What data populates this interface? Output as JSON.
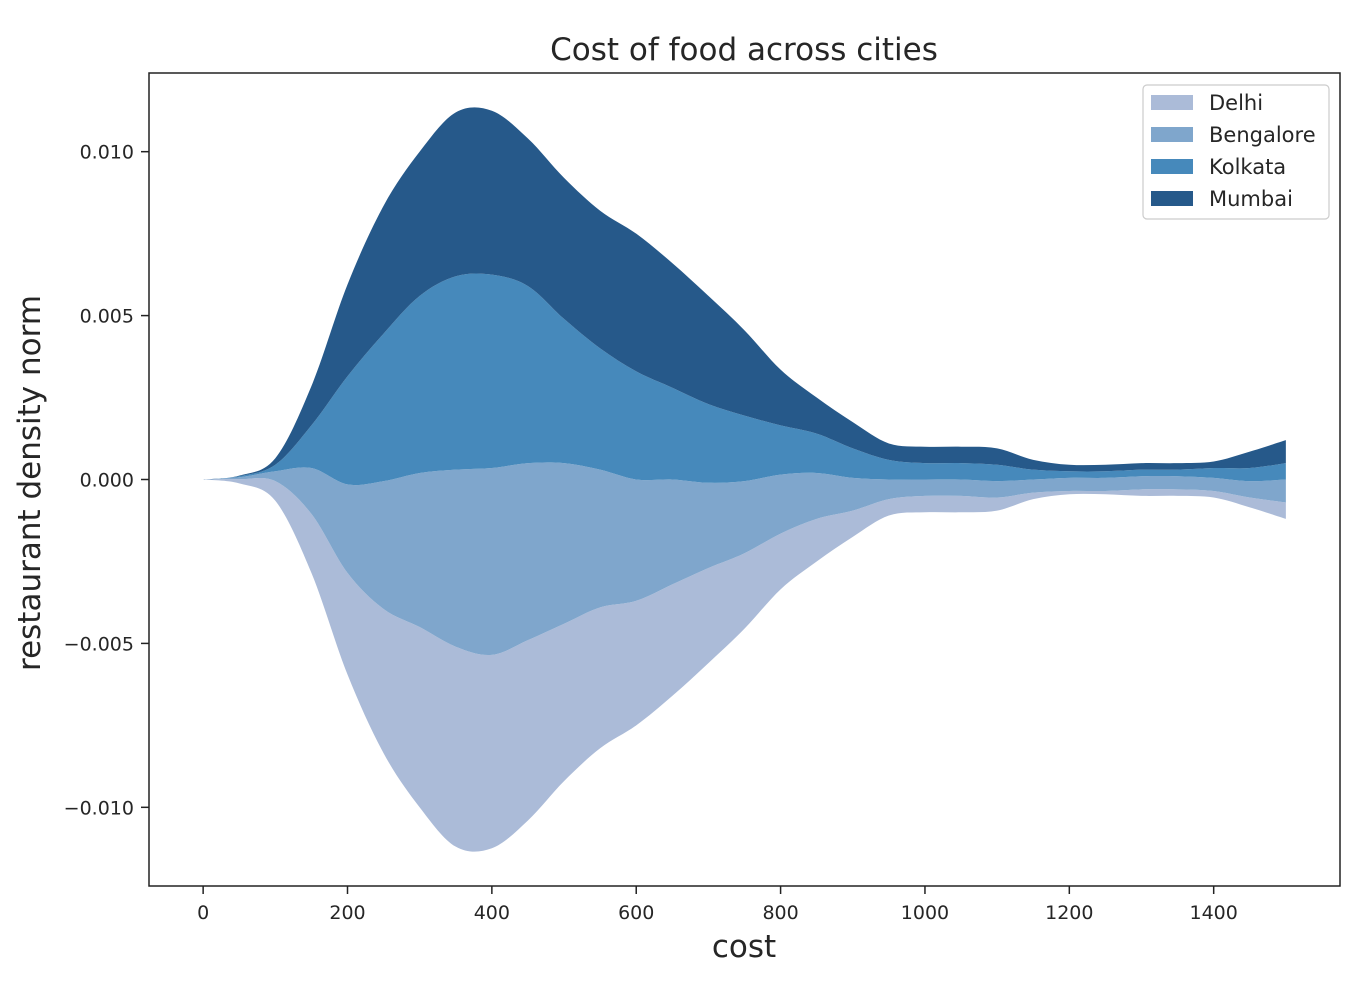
{
  "chart_data": {
    "type": "area",
    "subtype": "streamgraph",
    "title": "Cost of food across cities",
    "xlabel": "cost",
    "ylabel": "restaurant density norm",
    "xlim": [
      -75,
      1575
    ],
    "ylim": [
      -0.0124,
      0.0124
    ],
    "xticks": [
      0,
      200,
      400,
      600,
      800,
      1000,
      1200,
      1400
    ],
    "xtick_labels": [
      "0",
      "200",
      "400",
      "600",
      "800",
      "1000",
      "1200",
      "1400"
    ],
    "yticks": [
      0.01,
      0.005,
      0.0,
      -0.005,
      -0.01
    ],
    "ytick_labels": [
      "0.010",
      "0.005",
      "0.000",
      "−0.005",
      "−0.010"
    ],
    "baseline": "symmetric",
    "grid": false,
    "legend_position": "upper right",
    "x": [
      0,
      50,
      100,
      150,
      200,
      250,
      300,
      350,
      400,
      450,
      500,
      550,
      600,
      650,
      700,
      750,
      800,
      850,
      900,
      950,
      1000,
      1050,
      1100,
      1150,
      1200,
      1250,
      1300,
      1350,
      1400,
      1450,
      1500
    ],
    "series": [
      {
        "name": "Delhi",
        "color": "#abbbd8",
        "values": [
          0,
          0.00013,
          0.0006,
          0.0018,
          0.0031,
          0.0044,
          0.0055,
          0.0061,
          0.0059,
          0.0055,
          0.0048,
          0.0043,
          0.0038,
          0.0034,
          0.0029,
          0.0023,
          0.0017,
          0.0013,
          0.0008,
          0.0005,
          0.0005,
          0.0005,
          0.0004,
          0.0002,
          0.0001,
          0.0001,
          0.0002,
          0.0002,
          0.0002,
          0.0003,
          0.0005
        ]
      },
      {
        "name": "Bengalore",
        "color": "#7fa6cc",
        "values": [
          0,
          6e-05,
          0.0003,
          0.0014,
          0.0027,
          0.0039,
          0.0047,
          0.0054,
          0.0057,
          0.0054,
          0.0049,
          0.0042,
          0.0037,
          0.0032,
          0.0026,
          0.0022,
          0.0018,
          0.0014,
          0.001,
          0.0006,
          0.0005,
          0.0005,
          0.0005,
          0.0004,
          0.0004,
          0.0004,
          0.0004,
          0.0004,
          0.0004,
          0.0005,
          0.0007
        ]
      },
      {
        "name": "Kolkata",
        "color": "#4689bb",
        "values": [
          0,
          3e-05,
          0.0002,
          0.0013,
          0.0033,
          0.0045,
          0.0054,
          0.0059,
          0.0059,
          0.0054,
          0.0044,
          0.0037,
          0.0033,
          0.0028,
          0.0024,
          0.002,
          0.0015,
          0.0012,
          0.0009,
          0.0006,
          0.0005,
          0.0005,
          0.0005,
          0.0003,
          0.0002,
          0.0002,
          0.0002,
          0.0002,
          0.0003,
          0.0004,
          0.0005
        ]
      },
      {
        "name": "Mumbai",
        "color": "#26598a",
        "values": [
          0,
          2e-05,
          0.0002,
          0.0012,
          0.0028,
          0.0039,
          0.0044,
          0.005,
          0.005,
          0.0045,
          0.0043,
          0.0042,
          0.0042,
          0.0038,
          0.0033,
          0.0026,
          0.0017,
          0.0011,
          0.0008,
          0.0005,
          0.0005,
          0.0005,
          0.0005,
          0.0003,
          0.0002,
          0.0002,
          0.0002,
          0.0002,
          0.0002,
          0.0005,
          0.0007
        ]
      }
    ]
  }
}
